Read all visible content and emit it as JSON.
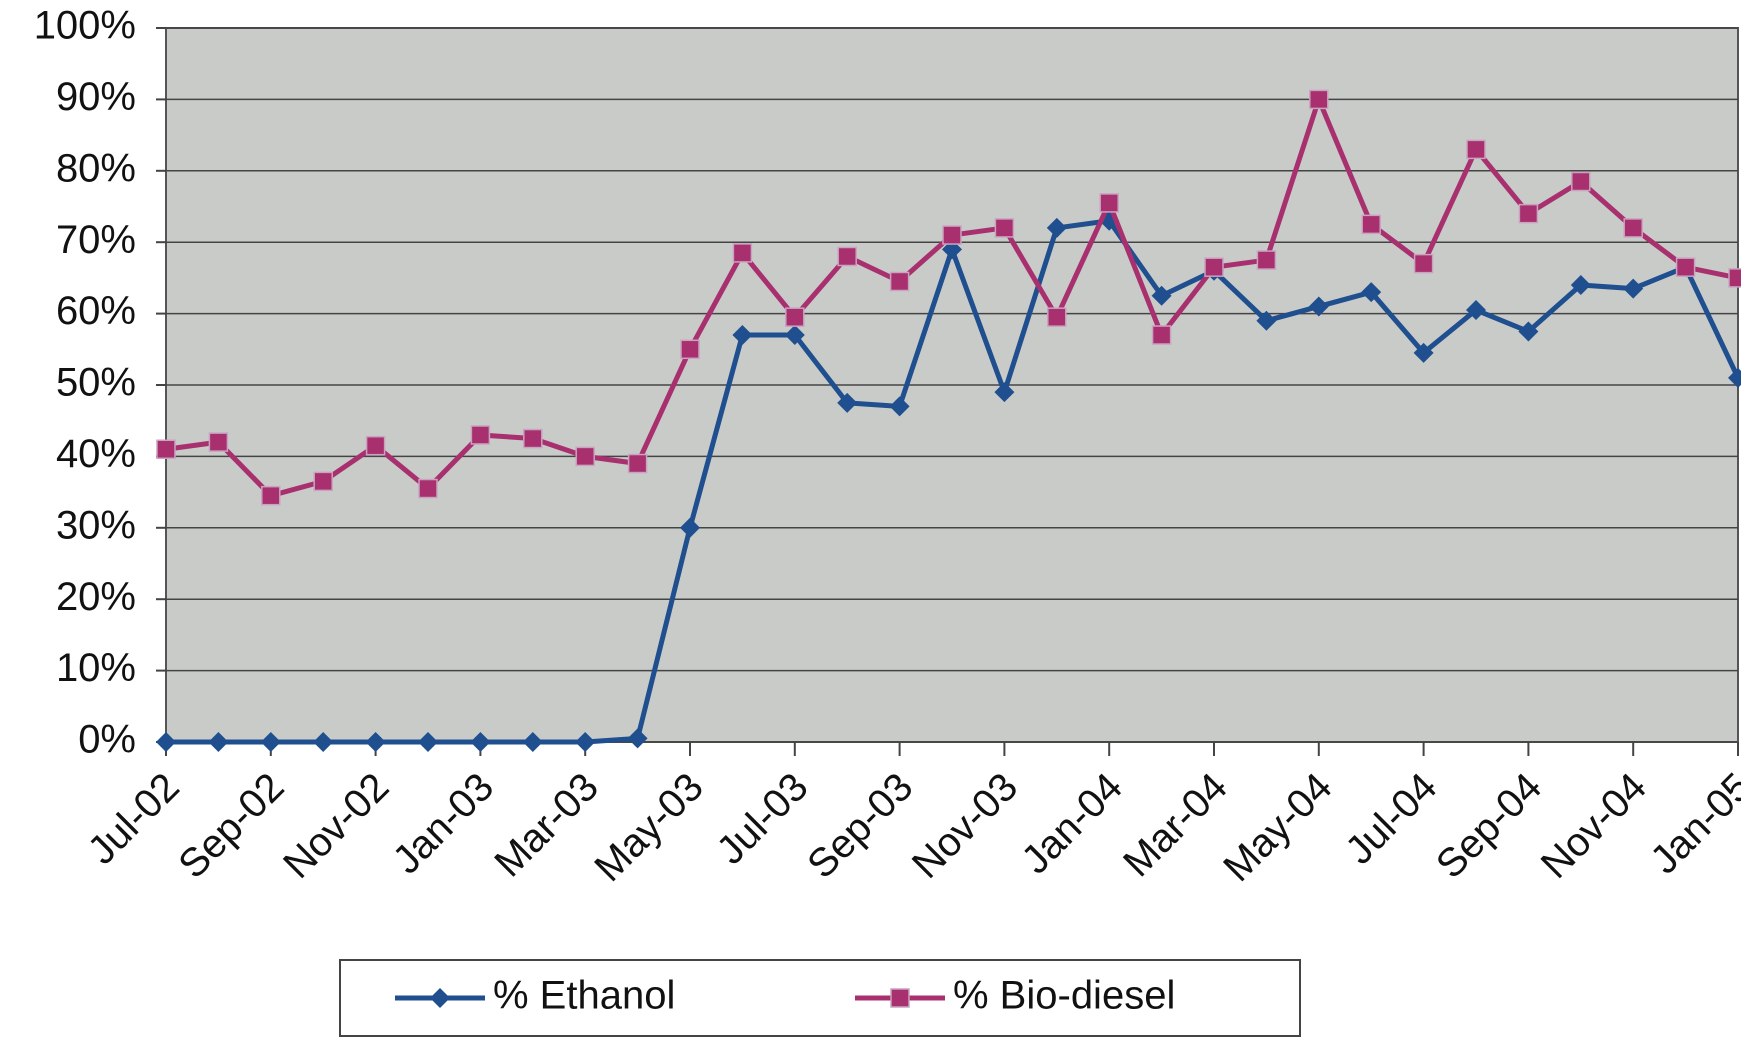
{
  "chart_data": {
    "type": "line",
    "categories": [
      "Jul-02",
      null,
      "Sep-02",
      null,
      "Nov-02",
      null,
      "Jan-03",
      null,
      "Mar-03",
      null,
      "May-03",
      null,
      "Jul-03",
      null,
      "Sep-03",
      null,
      "Nov-03",
      null,
      "Jan-04",
      null,
      "Mar-04",
      null,
      "May-04",
      null,
      "Jul-04",
      null,
      "Sep-04",
      null,
      "Nov-04",
      null,
      "Jan-05"
    ],
    "series": [
      {
        "name": "% Ethanol",
        "color": "#1f4f8f",
        "marker": "diamond",
        "values": [
          0,
          0,
          0,
          0,
          0,
          0,
          0,
          0,
          0,
          0.5,
          30,
          57,
          57,
          47.5,
          47,
          69,
          49,
          72,
          73,
          62.5,
          66,
          59,
          61,
          63,
          54.5,
          60.5,
          57.5,
          64,
          63.5,
          66.5,
          51
        ]
      },
      {
        "name": "% Bio-diesel",
        "color": "#a8306e",
        "marker": "square",
        "values": [
          41,
          42,
          34.5,
          36.5,
          41.5,
          35.5,
          43,
          42.5,
          40,
          39,
          55,
          68.5,
          59.5,
          68,
          64.5,
          71,
          72,
          59.5,
          75.5,
          57,
          66.5,
          67.5,
          90,
          72.5,
          67,
          83,
          74,
          78.5,
          72,
          66.5,
          65
        ]
      }
    ],
    "ylim": [
      0,
      100
    ],
    "yticks": [
      {
        "value": 0,
        "label": "0%"
      },
      {
        "value": 10,
        "label": "10%"
      },
      {
        "value": 20,
        "label": "20%"
      },
      {
        "value": 30,
        "label": "30%"
      },
      {
        "value": 40,
        "label": "40%"
      },
      {
        "value": 50,
        "label": "50%"
      },
      {
        "value": 60,
        "label": "60%"
      },
      {
        "value": 70,
        "label": "70%"
      },
      {
        "value": 80,
        "label": "80%"
      },
      {
        "value": 90,
        "label": "90%"
      },
      {
        "value": 100,
        "label": "100%"
      }
    ],
    "grid": true,
    "legend": "bottom"
  }
}
